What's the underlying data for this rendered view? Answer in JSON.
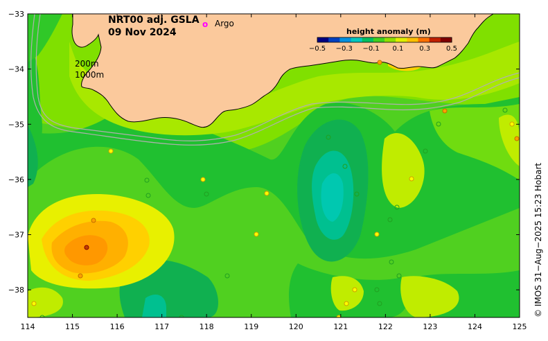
{
  "title": {
    "line1": "NRT00 adj. GSLA",
    "line2": "09 Nov 2024"
  },
  "legend": {
    "argo_symbol": "o",
    "argo_label": "Argo",
    "argo_color": "#ff00ff"
  },
  "contours": {
    "label_200": "200m",
    "label_1000": "1000m"
  },
  "colorbar": {
    "title": "height anomaly (m)",
    "ticks": [
      "−0.5",
      "−0.3",
      "−0.1",
      "0.1",
      "0.3",
      "0.5"
    ],
    "tick_values": [
      -0.5,
      -0.3,
      -0.1,
      0.1,
      0.3,
      0.5
    ],
    "colors": [
      "#000080",
      "#0040c0",
      "#0090e0",
      "#00c8c0",
      "#00c060",
      "#40d020",
      "#90e000",
      "#e0f000",
      "#ffc000",
      "#ff7000",
      "#c02000",
      "#800000"
    ]
  },
  "axes": {
    "x_ticks": [
      "114",
      "115",
      "116",
      "117",
      "118",
      "119",
      "120",
      "121",
      "122",
      "123",
      "124",
      "125"
    ],
    "x_values": [
      114,
      115,
      116,
      117,
      118,
      119,
      120,
      121,
      122,
      123,
      124,
      125
    ],
    "y_ticks": [
      "−33",
      "−34",
      "−35",
      "−36",
      "−37",
      "−38"
    ],
    "y_values": [
      -33,
      -34,
      -35,
      -36,
      -37,
      -38
    ]
  },
  "credit": "© IMOS 31−Aug−2025 15:23 Hobart",
  "colors": {
    "land": "#fbc99c",
    "ocean_base": "#80e000",
    "frame": "#000000"
  }
}
